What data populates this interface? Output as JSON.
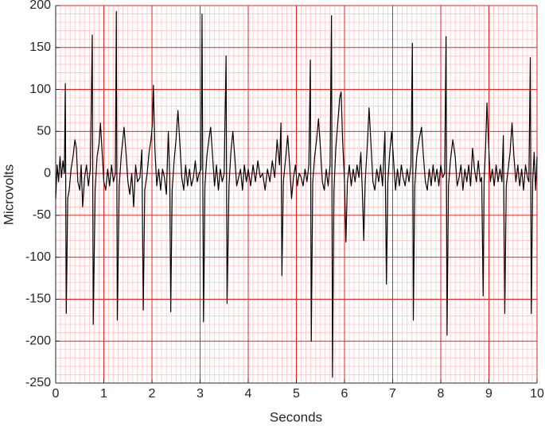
{
  "chart_data": {
    "type": "line",
    "xlabel": "Seconds",
    "ylabel": "Microvolts",
    "xlim": [
      0,
      10
    ],
    "xticks": [
      0,
      1,
      2,
      3,
      4,
      5,
      6,
      7,
      8,
      9,
      10
    ],
    "ylim": [
      -250,
      200
    ],
    "yticks": [
      -250,
      -200,
      -150,
      -100,
      -50,
      0,
      50,
      100,
      150,
      200
    ],
    "grid": true,
    "grid_color": "#ee2020",
    "minor_grid": true,
    "minor_grid_color": "#ffc4c4",
    "series": [
      {
        "color": "#000000",
        "x": [
          0.0,
          0.03,
          0.06,
          0.09,
          0.12,
          0.15,
          0.18,
          0.2,
          0.22,
          0.25,
          0.28,
          0.32,
          0.36,
          0.4,
          0.43,
          0.46,
          0.5,
          0.53,
          0.56,
          0.6,
          0.64,
          0.68,
          0.72,
          0.76,
          0.78,
          0.82,
          0.86,
          0.9,
          0.93,
          0.96,
          1.0,
          1.04,
          1.08,
          1.12,
          1.16,
          1.2,
          1.24,
          1.26,
          1.28,
          1.32,
          1.36,
          1.42,
          1.46,
          1.5,
          1.54,
          1.58,
          1.62,
          1.66,
          1.7,
          1.75,
          1.79,
          1.82,
          1.85,
          1.9,
          1.94,
          1.98,
          2.01,
          2.03,
          2.06,
          2.1,
          2.14,
          2.18,
          2.22,
          2.26,
          2.3,
          2.34,
          2.37,
          2.39,
          2.42,
          2.46,
          2.5,
          2.54,
          2.58,
          2.62,
          2.66,
          2.7,
          2.74,
          2.78,
          2.82,
          2.86,
          2.9,
          2.94,
          2.98,
          3.02,
          3.04,
          3.07,
          3.1,
          3.14,
          3.18,
          3.22,
          3.26,
          3.3,
          3.34,
          3.38,
          3.42,
          3.46,
          3.5,
          3.54,
          3.56,
          3.6,
          3.64,
          3.68,
          3.72,
          3.76,
          3.8,
          3.84,
          3.88,
          3.92,
          3.96,
          4.0,
          4.05,
          4.1,
          4.15,
          4.2,
          4.25,
          4.3,
          4.35,
          4.4,
          4.45,
          4.5,
          4.55,
          4.6,
          4.65,
          4.68,
          4.7,
          4.73,
          4.78,
          4.82,
          4.86,
          4.9,
          4.94,
          4.98,
          5.02,
          5.06,
          5.1,
          5.14,
          5.18,
          5.22,
          5.26,
          5.29,
          5.31,
          5.34,
          5.38,
          5.42,
          5.46,
          5.5,
          5.54,
          5.58,
          5.62,
          5.66,
          5.7,
          5.73,
          5.75,
          5.78,
          5.82,
          5.86,
          5.9,
          5.93,
          5.96,
          6.0,
          6.03,
          6.06,
          6.1,
          6.14,
          6.18,
          6.22,
          6.26,
          6.3,
          6.34,
          6.37,
          6.4,
          6.43,
          6.47,
          6.51,
          6.55,
          6.59,
          6.63,
          6.67,
          6.71,
          6.75,
          6.79,
          6.84,
          6.87,
          6.9,
          6.94,
          6.98,
          7.02,
          7.06,
          7.1,
          7.14,
          7.18,
          7.22,
          7.26,
          7.3,
          7.34,
          7.38,
          7.41,
          7.43,
          7.46,
          7.5,
          7.55,
          7.6,
          7.64,
          7.68,
          7.72,
          7.76,
          7.8,
          7.84,
          7.88,
          7.92,
          7.96,
          8.0,
          8.04,
          8.08,
          8.11,
          8.13,
          8.16,
          8.2,
          8.25,
          8.3,
          8.34,
          8.38,
          8.42,
          8.46,
          8.5,
          8.54,
          8.58,
          8.62,
          8.66,
          8.7,
          8.74,
          8.78,
          8.82,
          8.85,
          8.88,
          8.9,
          8.93,
          8.96,
          8.99,
          9.03,
          9.07,
          9.11,
          9.15,
          9.19,
          9.23,
          9.27,
          9.3,
          9.33,
          9.36,
          9.4,
          9.44,
          9.48,
          9.52,
          9.56,
          9.6,
          9.64,
          9.68,
          9.72,
          9.76,
          9.8,
          9.83,
          9.86,
          9.88,
          9.91,
          9.94,
          9.97,
          10.0
        ],
        "values": [
          -30,
          10,
          -10,
          20,
          -5,
          15,
          0,
          107,
          -167,
          -30,
          -20,
          5,
          20,
          40,
          30,
          -10,
          -20,
          10,
          -40,
          -5,
          10,
          -15,
          5,
          165,
          -180,
          -20,
          20,
          35,
          60,
          30,
          -10,
          -20,
          5,
          -15,
          10,
          -10,
          0,
          193,
          -175,
          -15,
          20,
          55,
          25,
          -10,
          -25,
          0,
          -40,
          10,
          -10,
          -5,
          28,
          -163,
          -20,
          0,
          25,
          40,
          60,
          105,
          30,
          -15,
          5,
          -20,
          5,
          -5,
          -25,
          50,
          -5,
          -165,
          -20,
          15,
          40,
          75,
          35,
          -5,
          -20,
          10,
          -15,
          5,
          -15,
          -5,
          15,
          -10,
          0,
          5,
          190,
          -177,
          -15,
          20,
          40,
          55,
          20,
          -15,
          10,
          -20,
          5,
          -10,
          0,
          140,
          -155,
          -15,
          25,
          50,
          20,
          -15,
          -5,
          5,
          -20,
          10,
          -10,
          5,
          -15,
          10,
          -10,
          15,
          -5,
          0,
          -20,
          5,
          -10,
          15,
          -5,
          40,
          10,
          60,
          -122,
          -10,
          20,
          45,
          10,
          -30,
          -5,
          10,
          -15,
          0,
          -5,
          -15,
          5,
          -10,
          10,
          135,
          -200,
          -10,
          20,
          40,
          65,
          30,
          -10,
          -20,
          5,
          -15,
          10,
          188,
          -243,
          -20,
          30,
          60,
          90,
          97,
          40,
          -10,
          -82,
          -10,
          10,
          -15,
          5,
          -10,
          10,
          -5,
          25,
          -20,
          -80,
          -10,
          30,
          78,
          35,
          -10,
          -20,
          5,
          -10,
          10,
          -15,
          50,
          -132,
          -10,
          25,
          50,
          15,
          -20,
          5,
          -15,
          10,
          -5,
          -15,
          5,
          -10,
          10,
          155,
          -175,
          -15,
          20,
          40,
          55,
          20,
          -10,
          -20,
          5,
          -15,
          10,
          -10,
          5,
          -15,
          10,
          -5,
          0,
          163,
          -193,
          -15,
          15,
          40,
          20,
          -15,
          -5,
          10,
          -20,
          5,
          -10,
          10,
          -15,
          30,
          5,
          -10,
          15,
          -10,
          -5,
          -146,
          -10,
          30,
          84,
          40,
          -10,
          5,
          -15,
          10,
          -10,
          5,
          -10,
          45,
          -167,
          -15,
          5,
          25,
          60,
          20,
          -10,
          10,
          -15,
          5,
          -20,
          10,
          -5,
          -10,
          138,
          -167,
          -10,
          25,
          -20,
          20
        ]
      }
    ]
  }
}
